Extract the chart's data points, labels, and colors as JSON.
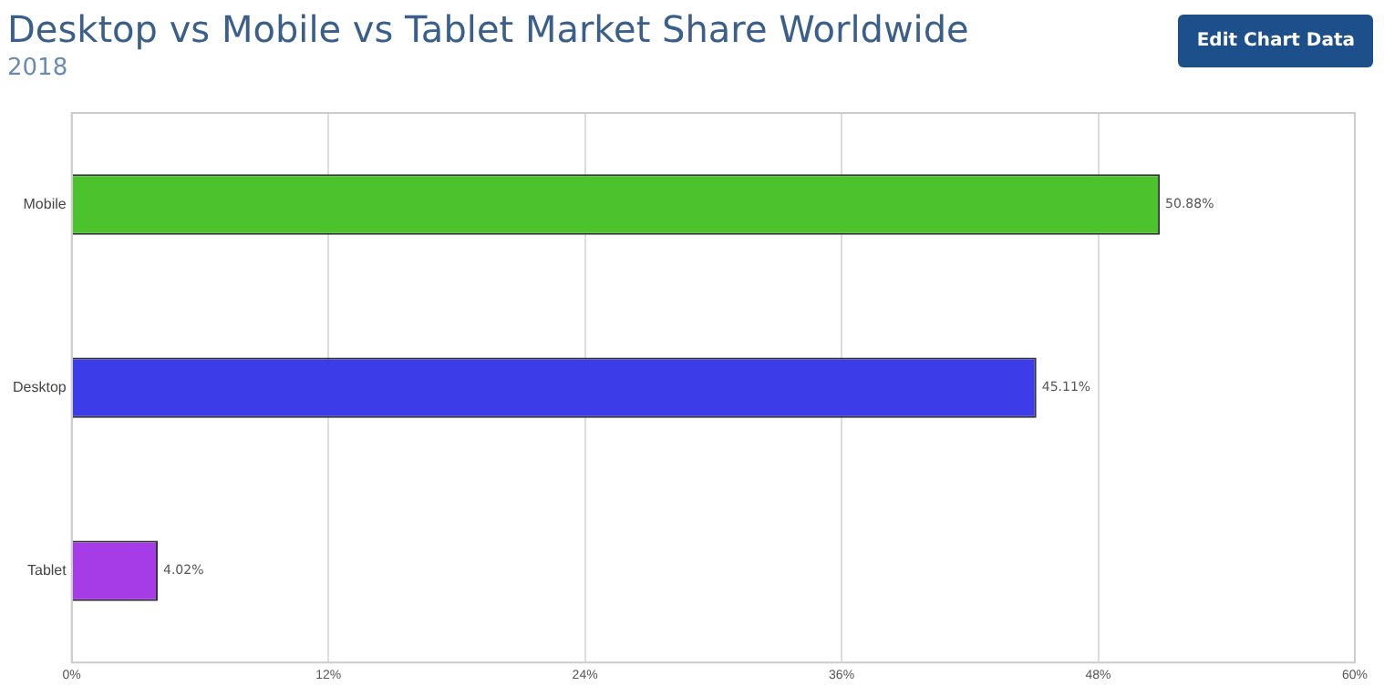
{
  "chart_data": {
    "type": "bar",
    "orientation": "horizontal",
    "title": "Desktop vs Mobile vs Tablet Market Share Worldwide",
    "subtitle": "2018",
    "categories": [
      "Mobile",
      "Desktop",
      "Tablet"
    ],
    "values": [
      50.88,
      45.11,
      4.02
    ],
    "colors": [
      "#4cc22c",
      "#3c3ce8",
      "#a63ce8"
    ],
    "value_labels": [
      "50.88%",
      "45.11%",
      "4.02%"
    ],
    "xlim": [
      0,
      60
    ],
    "xticks": [
      {
        "value": 0,
        "label": "0%"
      },
      {
        "value": 12,
        "label": "12%"
      },
      {
        "value": 24,
        "label": "24%"
      },
      {
        "value": 36,
        "label": "36%"
      },
      {
        "value": 48,
        "label": "48%"
      },
      {
        "value": 60,
        "label": "60%"
      }
    ],
    "grid": "x",
    "legend": false,
    "annotations": [
      "Edit Chart Data"
    ]
  }
}
